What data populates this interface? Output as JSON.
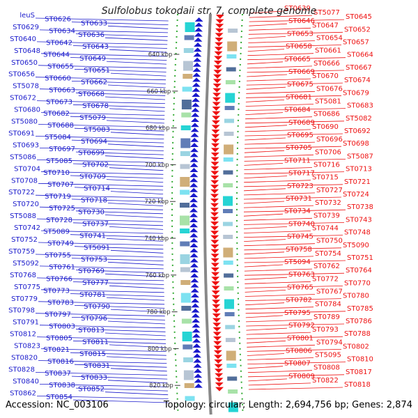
{
  "title": "Sulfolobus tokodaii str. 7, complete genome",
  "accession": "Accession: NC_003106",
  "summary": "Topology: circular; Length: 2,694,756 bp; Genes: 2,874",
  "colors": {
    "left": "#1a1acc",
    "right": "#ee1111",
    "ruler": "#555555",
    "backbone": "#888888",
    "tick": "#33aa33"
  },
  "ticks": [
    "640 kbp",
    "660 kbp",
    "680 kbp",
    "700 kbp",
    "720 kbp",
    "740 kbp",
    "760 kbp",
    "780 kbp",
    "800 kbp",
    "820 kbp"
  ],
  "left_labels": [
    "leuS",
    "ST0626",
    "ST0633",
    "ST0629",
    "ST0634",
    "ST0636",
    "ST0640",
    "ST0642",
    "ST0643",
    "ST0648",
    "ST0644",
    "ST0649",
    "ST0650",
    "ST0655",
    "ST0651",
    "ST0656",
    "ST0660",
    "ST0662",
    "ST5078",
    "ST0663",
    "ST0668",
    "ST0672",
    "ST0673",
    "ST0678",
    "ST0680",
    "ST0682",
    "ST5079",
    "ST5080",
    "ST0688",
    "ST5083",
    "ST0691",
    "ST5084",
    "ST0694",
    "ST0693",
    "ST0697",
    "ST0699",
    "ST5086",
    "ST5085",
    "ST0702",
    "ST0704",
    "ST0710",
    "ST0709",
    "ST0708",
    "ST0707",
    "ST0714",
    "ST0722",
    "ST0719",
    "ST0718",
    "ST0720",
    "ST0725",
    "ST0730",
    "ST5088",
    "ST0728",
    "ST0737",
    "ST0742",
    "ST5089",
    "ST0741",
    "ST0752",
    "ST0749",
    "ST5091",
    "ST0759",
    "ST0755",
    "ST0753",
    "ST5092",
    "ST0761",
    "ST0769",
    "ST0768",
    "ST0766",
    "ST0777",
    "ST0775",
    "ST0773",
    "ST0781",
    "ST0779",
    "ST0783",
    "ST0790",
    "ST0798",
    "ST0797",
    "ST0796",
    "ST0791",
    "ST0803",
    "ST0813",
    "ST0812",
    "ST0805",
    "ST0811",
    "ST0823",
    "ST0821",
    "ST0815",
    "ST0820",
    "ST0816",
    "ST0831",
    "ST0828",
    "ST0837",
    "ST0833",
    "ST0840",
    "ST0838",
    "ST0852",
    "ST0862",
    "ST0854"
  ],
  "right_labels": [
    "ST0639",
    "ST5077",
    "ST0645",
    "ST0646",
    "ST0647",
    "ST0652",
    "ST0653",
    "ST0654",
    "ST0657",
    "ST0658",
    "ST0661",
    "ST0664",
    "ST0665",
    "ST0666",
    "ST0667",
    "ST0669",
    "ST0670",
    "ST0674",
    "ST0675",
    "ST0676",
    "ST0679",
    "ST0681",
    "ST5081",
    "ST0683",
    "ST0684",
    "ST0686",
    "ST5082",
    "ST0689",
    "ST0690",
    "ST0692",
    "ST0695",
    "ST0696",
    "ST0698",
    "ST0705",
    "ST0706",
    "ST5087",
    "ST0711",
    "ST0716",
    "ST0713",
    "ST0717",
    "ST0715",
    "ST0721",
    "ST0723",
    "ST0727",
    "ST0724",
    "ST0731",
    "ST0732",
    "ST0738",
    "ST0734",
    "ST0739",
    "ST0743",
    "ST0740",
    "ST0744",
    "ST0748",
    "ST0745",
    "ST0750",
    "ST5090",
    "ST0758",
    "ST0754",
    "ST0751",
    "ST5094",
    "ST0762",
    "ST0764",
    "ST0763",
    "ST0772",
    "ST0770",
    "ST0765",
    "ST0767",
    "ST0780",
    "ST0782",
    "ST0784",
    "ST0785",
    "ST0795",
    "ST0789",
    "ST0786",
    "ST0792",
    "ST0793",
    "ST0788",
    "ST0801",
    "ST0794",
    "ST0802",
    "ST0806",
    "ST5095",
    "ST0810",
    "ST0807",
    "ST0808",
    "ST0817",
    "ST0809",
    "ST0822",
    "ST0818"
  ]
}
